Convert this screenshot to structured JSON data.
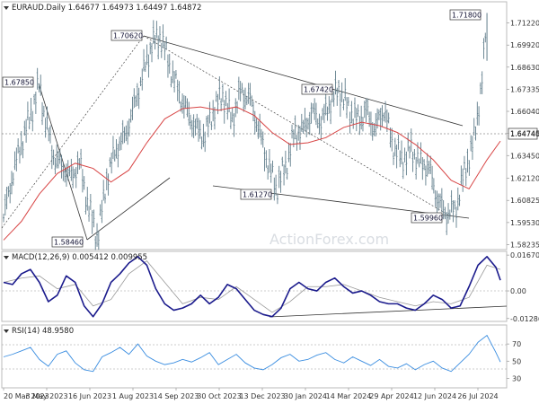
{
  "chart_data": [
    {
      "type": "line",
      "title": "EURAUD.Daily  1.64677 1.64973 1.64497 1.64872",
      "symbol": "EURAUD.Daily",
      "ohlc": [
        "1.64677",
        "1.64973",
        "1.64497",
        "1.64872"
      ],
      "y_ticks": [
        "1.71220",
        "1.69920",
        "1.68630",
        "1.67335",
        "1.66040",
        "1.64745",
        "1.63450",
        "1.62120",
        "1.60825",
        "1.59530",
        "1.58235"
      ],
      "ylim": [
        1.5805,
        1.7235
      ],
      "last_price": "1.64740",
      "annotations": [
        "1.67850",
        "1.70620",
        "1.71800",
        "1.67420",
        "1.61270",
        "1.58460",
        "1.59960"
      ],
      "watermark": "ActionForex.com",
      "series": [
        {
          "name": "",
          "style": "ohlc-bars",
          "color": "#607d8b",
          "x": [
            0,
            10,
            20,
            30,
            40,
            45,
            55,
            65,
            75,
            85,
            95,
            105,
            115,
            125,
            135,
            145,
            155,
            165,
            175,
            185,
            195,
            205,
            215,
            225,
            235,
            245,
            255,
            265,
            275,
            285,
            295,
            305,
            315,
            325,
            335,
            345,
            355,
            365,
            375,
            385,
            395,
            405,
            415,
            425,
            435,
            445,
            455,
            465,
            475,
            485,
            495,
            505,
            515,
            525,
            535,
            540
          ],
          "values": [
            1.598,
            1.623,
            1.642,
            1.658,
            1.676,
            1.66,
            1.635,
            1.628,
            1.622,
            1.63,
            1.604,
            1.586,
            1.62,
            1.638,
            1.645,
            1.662,
            1.681,
            1.699,
            1.705,
            1.688,
            1.672,
            1.66,
            1.65,
            1.646,
            1.662,
            1.67,
            1.655,
            1.672,
            1.668,
            1.65,
            1.63,
            1.615,
            1.628,
            1.647,
            1.65,
            1.66,
            1.654,
            1.666,
            1.673,
            1.662,
            1.655,
            1.66,
            1.65,
            1.662,
            1.64,
            1.632,
            1.638,
            1.63,
            1.628,
            1.608,
            1.6,
            1.603,
            1.625,
            1.642,
            1.68,
            1.718
          ]
        },
        {
          "name": "",
          "style": "line",
          "color": "#d84646",
          "x": [
            0,
            20,
            40,
            60,
            80,
            100,
            120,
            140,
            160,
            180,
            200,
            220,
            240,
            260,
            280,
            300,
            320,
            340,
            360,
            380,
            400,
            420,
            440,
            460,
            480,
            500,
            520,
            540,
            555
          ],
          "values": [
            1.585,
            1.596,
            1.612,
            1.624,
            1.63,
            1.627,
            1.619,
            1.626,
            1.642,
            1.656,
            1.662,
            1.663,
            1.661,
            1.663,
            1.658,
            1.648,
            1.641,
            1.642,
            1.645,
            1.651,
            1.654,
            1.652,
            1.648,
            1.641,
            1.632,
            1.62,
            1.615,
            1.632,
            1.643
          ]
        }
      ]
    },
    {
      "type": "line",
      "title": "MACD(12,26,9) 0.005412 0.009955",
      "y_ticks": [
        "0.016704",
        "0.00",
        "-0.012869"
      ],
      "ylim": [
        -0.0138,
        0.0176
      ],
      "series": [
        {
          "name": "",
          "color": "#1a1a8c",
          "x": [
            0,
            10,
            20,
            30,
            40,
            50,
            60,
            70,
            80,
            90,
            100,
            110,
            120,
            130,
            140,
            150,
            160,
            170,
            180,
            190,
            200,
            210,
            220,
            230,
            240,
            250,
            260,
            270,
            280,
            290,
            300,
            310,
            320,
            330,
            340,
            350,
            360,
            370,
            380,
            390,
            400,
            410,
            420,
            430,
            440,
            450,
            460,
            470,
            480,
            490,
            500,
            510,
            520,
            530,
            540,
            550,
            555
          ],
          "values": [
            0.004,
            0.003,
            0.008,
            0.01,
            0.004,
            -0.005,
            -0.002,
            0.007,
            0.004,
            -0.007,
            -0.012,
            -0.006,
            0.004,
            0.008,
            0.013,
            0.016,
            0.012,
            0.001,
            -0.006,
            -0.009,
            -0.008,
            -0.006,
            -0.002,
            -0.006,
            -0.003,
            0.003,
            0.001,
            -0.004,
            -0.009,
            -0.011,
            -0.012,
            -0.008,
            0.001,
            0.004,
            0.001,
            0.0,
            0.004,
            0.006,
            0.002,
            -0.001,
            0.0,
            -0.002,
            -0.005,
            -0.006,
            -0.006,
            -0.008,
            -0.009,
            -0.006,
            -0.002,
            -0.004,
            -0.008,
            -0.007,
            0.002,
            0.012,
            0.016,
            0.011,
            0.005
          ]
        },
        {
          "name": "",
          "color": "#999999",
          "x": [
            0,
            20,
            40,
            60,
            80,
            100,
            120,
            140,
            160,
            180,
            200,
            220,
            240,
            260,
            280,
            300,
            320,
            340,
            360,
            380,
            400,
            420,
            440,
            460,
            480,
            500,
            520,
            540,
            555
          ],
          "values": [
            0.004,
            0.006,
            0.007,
            0.001,
            0.003,
            -0.007,
            -0.004,
            0.008,
            0.014,
            0.004,
            -0.006,
            -0.003,
            -0.004,
            0.002,
            -0.004,
            -0.01,
            -0.005,
            0.002,
            0.002,
            0.003,
            0.0,
            -0.003,
            -0.005,
            -0.007,
            -0.005,
            -0.006,
            -0.003,
            0.012,
            0.01
          ]
        }
      ]
    },
    {
      "type": "line",
      "title": "RSI(14) 48.9580",
      "y_ticks": [
        "70",
        "50",
        "30"
      ],
      "ylim": [
        20,
        90
      ],
      "series": [
        {
          "name": "",
          "color": "#3a8de0",
          "x": [
            0,
            10,
            20,
            30,
            40,
            50,
            60,
            70,
            80,
            90,
            100,
            110,
            120,
            130,
            140,
            150,
            160,
            170,
            180,
            190,
            200,
            210,
            220,
            230,
            240,
            250,
            260,
            270,
            280,
            290,
            300,
            310,
            320,
            330,
            340,
            350,
            360,
            370,
            380,
            390,
            400,
            410,
            420,
            430,
            440,
            450,
            460,
            470,
            480,
            490,
            500,
            510,
            520,
            530,
            540,
            550,
            555
          ],
          "values": [
            55,
            58,
            62,
            66,
            52,
            44,
            58,
            62,
            48,
            40,
            38,
            55,
            60,
            66,
            58,
            70,
            56,
            50,
            46,
            48,
            52,
            49,
            54,
            60,
            46,
            52,
            58,
            48,
            42,
            40,
            46,
            54,
            58,
            50,
            52,
            57,
            60,
            52,
            48,
            55,
            50,
            45,
            52,
            44,
            42,
            47,
            40,
            46,
            50,
            42,
            38,
            48,
            58,
            72,
            80,
            60,
            49
          ]
        }
      ]
    },
    {
      "type": "line",
      "x_ticks": [
        "20 Mar 2023",
        "3 May 2023",
        "16 Jun 2023",
        "1 Aug 2023",
        "14 Sep 2023",
        "30 Oct 2023",
        "13 Dec 2023",
        "30 Jan 2024",
        "14 Mar 2024",
        "29 Apr 2024",
        "12 Jun 2024",
        "26 Jul 2024"
      ]
    }
  ]
}
